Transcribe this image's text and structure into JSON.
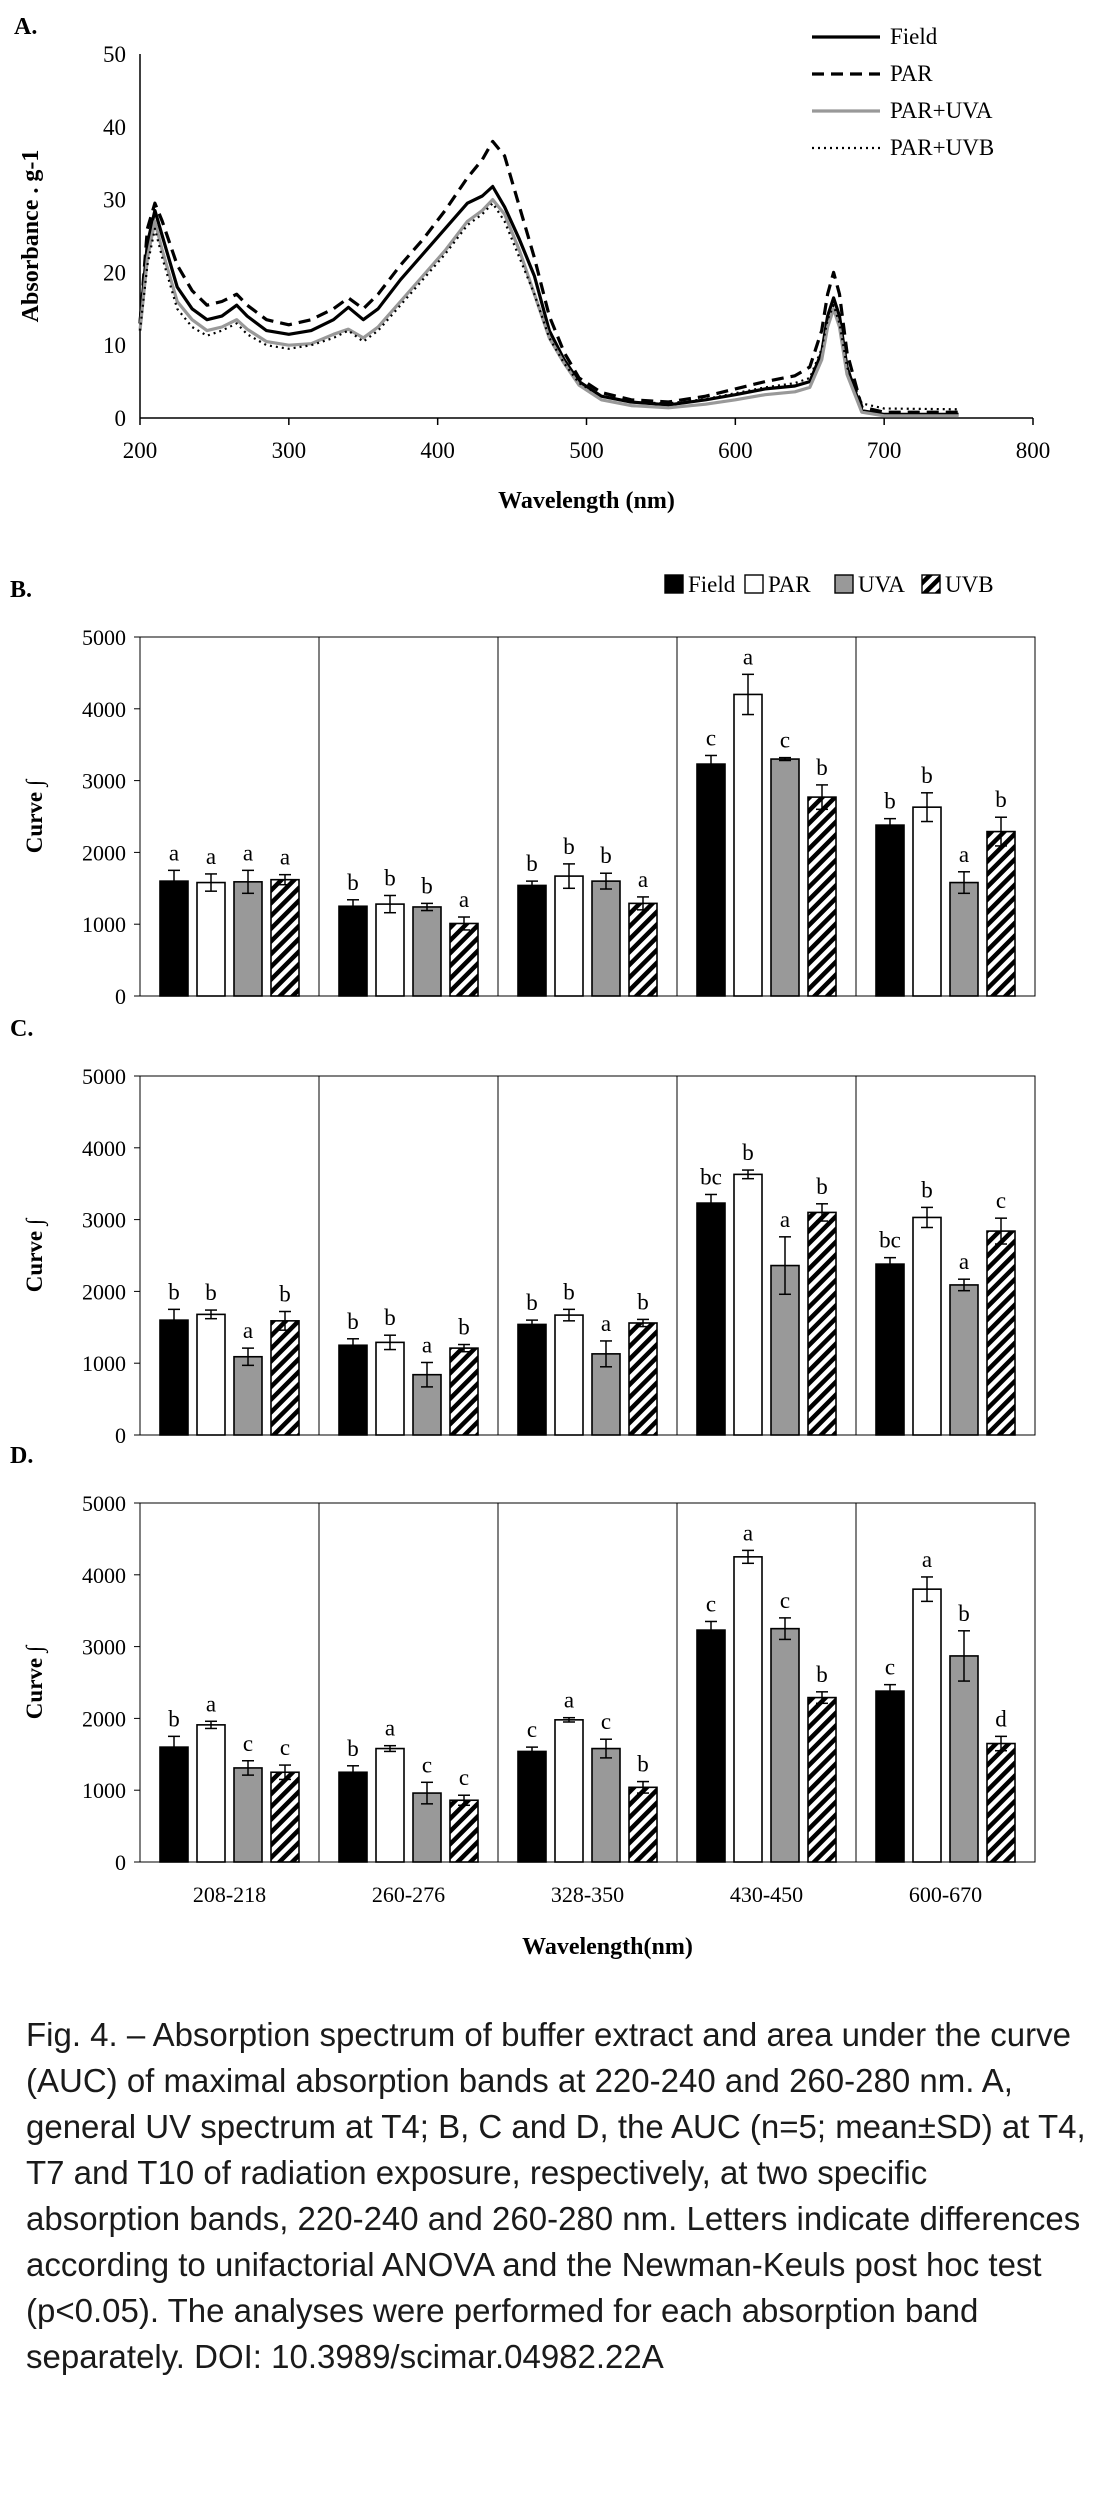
{
  "caption": "Fig. 4. – Absorption spectrum of buffer extract and area under the curve (AUC) of maximal absorption bands at 220-240 and 260-280 nm. A, general UV spectrum at T4; B, C and D, the AUC (n=5; mean±SD) at T4, T7 and T10 of radiation exposure, respectively, at two specific absorption bands, 220-240 and 260-280 nm. Letters indicate differences according to unifactorial ANOVA and the Newman-Keuls post hoc test (p<0.05). The analyses were performed for each absorption band separately. DOI: 10.3989/scimar.04982.22A",
  "chart_data": [
    {
      "panel": "A.",
      "type": "line",
      "xlabel": "Wavelength (nm)",
      "ylabel": "Absorbance . g-1",
      "xlim": [
        200,
        800
      ],
      "ylim": [
        0,
        50
      ],
      "xticks": [
        200,
        300,
        400,
        500,
        600,
        700,
        800
      ],
      "yticks": [
        0,
        10,
        20,
        30,
        40,
        50
      ],
      "legend_position": "top-right",
      "series": [
        {
          "name": "Field",
          "style": "solid",
          "color": "#000000",
          "x": [
            200,
            205,
            210,
            215,
            225,
            235,
            245,
            255,
            265,
            272,
            285,
            300,
            315,
            330,
            340,
            350,
            360,
            375,
            390,
            405,
            420,
            430,
            437,
            445,
            455,
            465,
            475,
            485,
            495,
            510,
            530,
            555,
            580,
            600,
            620,
            640,
            650,
            658,
            662,
            666,
            670,
            675,
            685,
            700,
            750
          ],
          "y": [
            13,
            24,
            28.5,
            25,
            18,
            15,
            13.5,
            14,
            15.5,
            14,
            12,
            11.5,
            12,
            13.5,
            15.2,
            13.5,
            15,
            19,
            22.5,
            26,
            29.5,
            30.5,
            31.8,
            29,
            24.5,
            19.5,
            12,
            8,
            5,
            3,
            2.2,
            1.8,
            2.5,
            3.2,
            4,
            4.4,
            5,
            9,
            14,
            16.5,
            14,
            7,
            1,
            0.5,
            0.5
          ]
        },
        {
          "name": "PAR",
          "style": "dashed",
          "color": "#000000",
          "x": [
            200,
            205,
            210,
            215,
            225,
            235,
            245,
            255,
            265,
            272,
            285,
            300,
            315,
            330,
            340,
            350,
            360,
            375,
            390,
            405,
            420,
            430,
            437,
            445,
            455,
            465,
            475,
            485,
            495,
            510,
            530,
            555,
            580,
            600,
            620,
            640,
            650,
            658,
            662,
            666,
            670,
            675,
            685,
            700,
            750
          ],
          "y": [
            13,
            26,
            29.5,
            27,
            21,
            17.5,
            15.5,
            16,
            17,
            15.5,
            13.5,
            12.8,
            13.5,
            15,
            16.5,
            15,
            17,
            21,
            24.5,
            28.5,
            33,
            35.5,
            38,
            36,
            29,
            22,
            14,
            9,
            5.5,
            3.5,
            2.5,
            2.2,
            3,
            4,
            5,
            5.8,
            7,
            12,
            17,
            20,
            17,
            9,
            1.5,
            0.8,
            0.8
          ]
        },
        {
          "name": "PAR+UVA",
          "style": "solid",
          "color": "#999999",
          "x": [
            200,
            205,
            210,
            215,
            225,
            235,
            245,
            255,
            265,
            272,
            285,
            300,
            315,
            330,
            340,
            350,
            360,
            375,
            390,
            405,
            420,
            430,
            437,
            445,
            455,
            465,
            475,
            485,
            495,
            510,
            530,
            555,
            580,
            600,
            620,
            640,
            650,
            658,
            662,
            666,
            670,
            675,
            685,
            700,
            750
          ],
          "y": [
            12,
            22,
            27,
            23,
            16,
            13.5,
            12,
            12.5,
            13.5,
            12.2,
            10.5,
            10,
            10.2,
            11.5,
            12.2,
            11,
            12.5,
            16,
            19.5,
            23,
            27,
            28.5,
            30,
            28,
            23,
            17,
            11,
            7.5,
            4.5,
            2.5,
            1.7,
            1.4,
            1.9,
            2.5,
            3.2,
            3.6,
            4.2,
            8,
            12.5,
            15,
            12.5,
            6,
            0.8,
            0.3,
            0.3
          ]
        },
        {
          "name": "PAR+UVB",
          "style": "dotted",
          "color": "#000000",
          "x": [
            200,
            205,
            210,
            215,
            225,
            235,
            245,
            255,
            265,
            272,
            285,
            300,
            315,
            330,
            340,
            350,
            360,
            375,
            390,
            405,
            420,
            430,
            437,
            445,
            455,
            465,
            475,
            485,
            495,
            510,
            530,
            555,
            580,
            600,
            620,
            640,
            650,
            658,
            662,
            666,
            670,
            675,
            685,
            700,
            750
          ],
          "y": [
            12,
            21,
            26,
            22,
            15,
            12.5,
            11.3,
            12,
            13,
            11.5,
            10,
            9.5,
            10,
            11,
            12,
            10.5,
            12,
            15.5,
            19,
            22.5,
            26.5,
            28,
            29.5,
            27,
            22,
            17,
            11,
            7.5,
            4.8,
            3,
            2.2,
            2,
            2.6,
            3.4,
            4.2,
            4.8,
            5.5,
            9.5,
            13.5,
            15.5,
            13,
            7,
            2,
            1.3,
            1.2
          ]
        }
      ]
    },
    {
      "panel": "B.",
      "type": "bar",
      "xlabel": "",
      "ylabel": "Curve ∫",
      "ylim": [
        0,
        5000
      ],
      "yticks": [
        0,
        1000,
        2000,
        3000,
        4000,
        5000
      ],
      "legend_position": "top-right",
      "categories": [
        "208-218",
        "260-276",
        "328-350",
        "430-450",
        "600-670"
      ],
      "series": [
        {
          "name": "Field",
          "values": [
            1600,
            1250,
            1540,
            3230,
            2380
          ],
          "errors": [
            150,
            90,
            60,
            120,
            90
          ],
          "letters": [
            "a",
            "b",
            "b",
            "c",
            "b"
          ]
        },
        {
          "name": "PAR",
          "values": [
            1580,
            1280,
            1670,
            4200,
            2630
          ],
          "errors": [
            120,
            120,
            170,
            280,
            200
          ],
          "letters": [
            "a",
            "b",
            "b",
            "a",
            "b"
          ]
        },
        {
          "name": "UVA",
          "values": [
            1590,
            1240,
            1600,
            3300,
            1580
          ],
          "errors": [
            160,
            50,
            110,
            20,
            150
          ],
          "letters": [
            "a",
            "b",
            "b",
            "c",
            "a"
          ]
        },
        {
          "name": "UVB",
          "values": [
            1620,
            1010,
            1290,
            2770,
            2290
          ],
          "errors": [
            70,
            90,
            90,
            170,
            200
          ],
          "letters": [
            "a",
            "a",
            "a",
            "b",
            "b"
          ]
        }
      ]
    },
    {
      "panel": "C.",
      "type": "bar",
      "xlabel": "",
      "ylabel": "Curve ∫",
      "ylim": [
        0,
        5000
      ],
      "yticks": [
        0,
        1000,
        2000,
        3000,
        4000,
        5000
      ],
      "categories": [
        "208-218",
        "260-276",
        "328-350",
        "430-450",
        "600-670"
      ],
      "series": [
        {
          "name": "Field",
          "values": [
            1600,
            1250,
            1540,
            3230,
            2380
          ],
          "errors": [
            150,
            90,
            60,
            120,
            90
          ],
          "letters": [
            "b",
            "b",
            "b",
            "bc",
            "bc"
          ]
        },
        {
          "name": "PAR",
          "values": [
            1680,
            1290,
            1670,
            3630,
            3030
          ],
          "errors": [
            60,
            100,
            80,
            60,
            140
          ],
          "letters": [
            "b",
            "b",
            "b",
            "b",
            "b"
          ]
        },
        {
          "name": "UVA",
          "values": [
            1090,
            840,
            1130,
            2360,
            2090
          ],
          "errors": [
            120,
            170,
            180,
            400,
            80
          ],
          "letters": [
            "a",
            "a",
            "a",
            "a",
            "a"
          ]
        },
        {
          "name": "UVB",
          "values": [
            1590,
            1210,
            1560,
            3100,
            2840
          ],
          "errors": [
            130,
            50,
            50,
            120,
            180
          ],
          "letters": [
            "b",
            "b",
            "b",
            "b",
            "c"
          ]
        }
      ]
    },
    {
      "panel": "D.",
      "type": "bar",
      "xlabel": "Wavelength(nm)",
      "ylabel": "Curve ∫",
      "ylim": [
        0,
        5000
      ],
      "yticks": [
        0,
        1000,
        2000,
        3000,
        4000,
        5000
      ],
      "categories": [
        "208-218",
        "260-276",
        "328-350",
        "430-450",
        "600-670"
      ],
      "series": [
        {
          "name": "Field",
          "values": [
            1600,
            1250,
            1540,
            3230,
            2380
          ],
          "errors": [
            150,
            90,
            60,
            120,
            90
          ],
          "letters": [
            "b",
            "b",
            "c",
            "c",
            "c"
          ]
        },
        {
          "name": "PAR",
          "values": [
            1910,
            1580,
            1980,
            4250,
            3800
          ],
          "errors": [
            50,
            40,
            30,
            90,
            170
          ],
          "letters": [
            "a",
            "a",
            "a",
            "a",
            "a"
          ]
        },
        {
          "name": "UVA",
          "values": [
            1310,
            960,
            1580,
            3250,
            2870
          ],
          "errors": [
            100,
            150,
            130,
            150,
            350
          ],
          "letters": [
            "c",
            "c",
            "c",
            "c",
            "b"
          ]
        },
        {
          "name": "UVB",
          "values": [
            1250,
            860,
            1040,
            2290,
            1650
          ],
          "errors": [
            100,
            70,
            80,
            80,
            100
          ],
          "letters": [
            "c",
            "c",
            "b",
            "b",
            "d"
          ]
        }
      ]
    }
  ],
  "colors": {
    "field": "#000000",
    "par": "#ffffff",
    "uva": "#999999",
    "uvb": "hatched"
  }
}
